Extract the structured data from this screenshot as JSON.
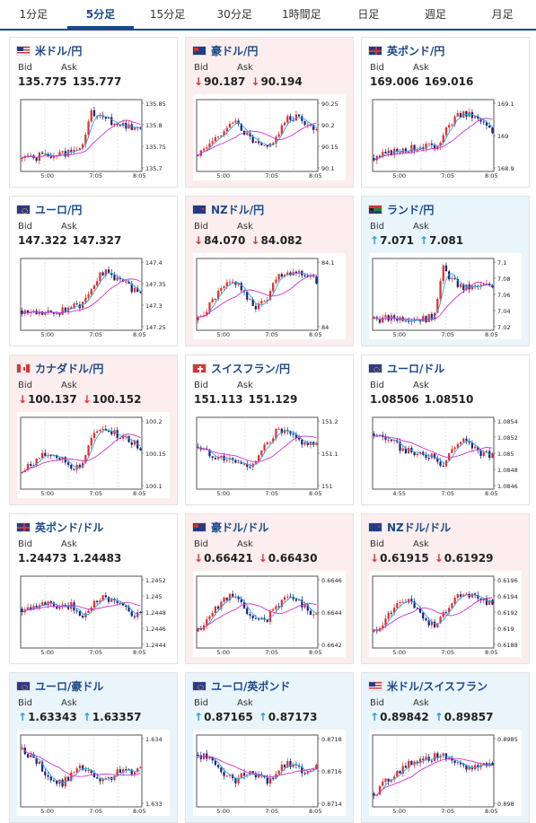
{
  "tabs": [
    {
      "label": "1分足",
      "active": false
    },
    {
      "label": "5分足",
      "active": true
    },
    {
      "label": "15分足",
      "active": false
    },
    {
      "label": "30分足",
      "active": false
    },
    {
      "label": "1時間足",
      "active": false
    },
    {
      "label": "日足",
      "active": false
    },
    {
      "label": "週足",
      "active": false
    },
    {
      "label": "月足",
      "active": false
    }
  ],
  "labels": {
    "bid": "Bid",
    "ask": "Ask"
  },
  "colors": {
    "bull": "#e03030",
    "bear": "#1a237e",
    "ma_fast": "#2aa8e0",
    "ma_slow": "#d030d0",
    "down_bg": "#fceeee",
    "up_bg": "#eaf4fb"
  },
  "cards": [
    {
      "pair": "米ドル/円",
      "flag": "us-jp",
      "dir": "none",
      "bid": "135.775",
      "ask": "135.777",
      "chart_data": {
        "type": "candlestick",
        "x_ticks": [
          "5:00",
          "7:05",
          "8:05"
        ],
        "y_ticks": [
          "135.85",
          "135.8",
          "135.75",
          "135.7"
        ],
        "ylim": [
          135.66,
          135.87
        ],
        "profile": [
          0.15,
          0.16,
          0.18,
          0.2,
          0.22,
          0.25,
          0.28,
          0.85,
          0.75,
          0.72,
          0.68,
          0.65,
          0.6
        ],
        "seed": 1
      }
    },
    {
      "pair": "豪ドル/円",
      "flag": "au-jp",
      "dir": "down",
      "bid": "90.187",
      "ask": "90.194",
      "chart_data": {
        "type": "candlestick",
        "x_ticks": [
          "5:00",
          "7:05",
          "8:05"
        ],
        "y_ticks": [
          "90.25",
          "90.2",
          "90.15",
          "90.1"
        ],
        "ylim": [
          90.09,
          90.27
        ],
        "profile": [
          0.2,
          0.35,
          0.5,
          0.65,
          0.7,
          0.5,
          0.35,
          0.3,
          0.5,
          0.75,
          0.8,
          0.7,
          0.6
        ],
        "seed": 2
      }
    },
    {
      "pair": "英ポンド/円",
      "flag": "gb-jp",
      "dir": "none",
      "bid": "169.006",
      "ask": "169.016",
      "chart_data": {
        "type": "candlestick",
        "x_ticks": [
          "5:00",
          "7:05",
          "8:05"
        ],
        "y_ticks": [
          "169.1",
          "169",
          "168.9"
        ],
        "ylim": [
          168.88,
          169.12
        ],
        "profile": [
          0.15,
          0.2,
          0.25,
          0.3,
          0.3,
          0.35,
          0.3,
          0.5,
          0.75,
          0.85,
          0.8,
          0.7,
          0.55
        ],
        "seed": 3
      }
    },
    {
      "pair": "ユーロ/円",
      "flag": "eu-jp",
      "dir": "none",
      "bid": "147.322",
      "ask": "147.327",
      "chart_data": {
        "type": "candlestick",
        "x_ticks": [
          "5:00",
          "7:05",
          "8:05"
        ],
        "y_ticks": [
          "147.4",
          "147.35",
          "147.3",
          "147.25"
        ],
        "ylim": [
          147.21,
          147.42
        ],
        "profile": [
          0.25,
          0.22,
          0.2,
          0.2,
          0.25,
          0.3,
          0.35,
          0.6,
          0.85,
          0.8,
          0.7,
          0.6,
          0.55
        ],
        "seed": 4
      }
    },
    {
      "pair": "NZドル/円",
      "flag": "nz-jp",
      "dir": "down",
      "bid": "84.070",
      "ask": "84.082",
      "chart_data": {
        "type": "candlestick",
        "x_ticks": [
          "5:00",
          "7:05",
          "8:05"
        ],
        "y_ticks": [
          "84.1",
          "84"
        ],
        "ylim": [
          83.96,
          84.15
        ],
        "profile": [
          0.1,
          0.3,
          0.5,
          0.65,
          0.7,
          0.4,
          0.3,
          0.45,
          0.8,
          0.85,
          0.85,
          0.8,
          0.7
        ],
        "seed": 5
      }
    },
    {
      "pair": "ランド/円",
      "flag": "za-jp",
      "dir": "up",
      "bid": "7.071",
      "ask": "7.081",
      "chart_data": {
        "type": "candlestick",
        "x_ticks": [
          "5:00",
          "7:05",
          "8:05"
        ],
        "y_ticks": [
          "7.1",
          "7.08",
          "7.06",
          "7.04",
          "7.02"
        ],
        "ylim": [
          7.01,
          7.11
        ],
        "profile": [
          0.12,
          0.12,
          0.13,
          0.14,
          0.13,
          0.12,
          0.15,
          0.9,
          0.7,
          0.6,
          0.6,
          0.62,
          0.65
        ],
        "seed": 6
      }
    },
    {
      "pair": "カナダドル/円",
      "flag": "ca-jp",
      "dir": "down",
      "bid": "100.137",
      "ask": "100.152",
      "chart_data": {
        "type": "candlestick",
        "x_ticks": [
          "5:00",
          "7:05",
          "8:05"
        ],
        "y_ticks": [
          "100.2",
          "100.15",
          "100.1"
        ],
        "ylim": [
          100.05,
          100.22
        ],
        "profile": [
          0.2,
          0.35,
          0.45,
          0.5,
          0.4,
          0.3,
          0.3,
          0.7,
          0.9,
          0.85,
          0.75,
          0.7,
          0.6
        ],
        "seed": 7
      }
    },
    {
      "pair": "スイスフラン/円",
      "flag": "ch-jp",
      "dir": "none",
      "bid": "151.113",
      "ask": "151.129",
      "chart_data": {
        "type": "candlestick",
        "x_ticks": [
          "5:00",
          "7:05",
          "8:05"
        ],
        "y_ticks": [
          "151.2",
          "151.1",
          "151"
        ],
        "ylim": [
          150.97,
          151.22
        ],
        "profile": [
          0.6,
          0.5,
          0.45,
          0.4,
          0.35,
          0.3,
          0.4,
          0.65,
          0.85,
          0.8,
          0.7,
          0.65,
          0.6
        ],
        "seed": 8
      }
    },
    {
      "pair": "ユーロ/ドル",
      "flag": "eu-us",
      "dir": "none",
      "bid": "1.08506",
      "ask": "1.08510",
      "chart_data": {
        "type": "candlestick",
        "x_ticks": [
          "4:55",
          "7:05",
          "8:05"
        ],
        "y_ticks": [
          "1.0854",
          "1.0852",
          "1.085",
          "1.0848",
          "1.0846"
        ],
        "ylim": [
          1.08455,
          1.08545
        ],
        "profile": [
          0.8,
          0.75,
          0.65,
          0.55,
          0.5,
          0.45,
          0.5,
          0.3,
          0.6,
          0.7,
          0.6,
          0.5,
          0.45
        ],
        "seed": 9
      }
    },
    {
      "pair": "英ポンド/ドル",
      "flag": "gb-us",
      "dir": "none",
      "bid": "1.24473",
      "ask": "1.24483",
      "chart_data": {
        "type": "candlestick",
        "x_ticks": [
          "5:00",
          "7:05",
          "8:05"
        ],
        "y_ticks": [
          "1.2452",
          "1.245",
          "1.2448",
          "1.2446",
          "1.2444"
        ],
        "ylim": [
          1.24435,
          1.24525
        ],
        "profile": [
          0.55,
          0.6,
          0.65,
          0.6,
          0.55,
          0.6,
          0.4,
          0.6,
          0.75,
          0.7,
          0.6,
          0.5,
          0.45
        ],
        "seed": 10
      }
    },
    {
      "pair": "豪ドル/ドル",
      "flag": "au-us",
      "dir": "down",
      "bid": "0.66421",
      "ask": "0.66430",
      "chart_data": {
        "type": "candlestick",
        "x_ticks": [
          "5:00",
          "7:05",
          "8:05"
        ],
        "y_ticks": [
          "0.6646",
          "0.6644",
          "0.6642"
        ],
        "ylim": [
          0.6641,
          0.66465
        ],
        "profile": [
          0.2,
          0.4,
          0.6,
          0.75,
          0.7,
          0.5,
          0.35,
          0.4,
          0.6,
          0.75,
          0.7,
          0.55,
          0.45
        ],
        "seed": 11
      }
    },
    {
      "pair": "NZドル/ドル",
      "flag": "nz-us",
      "dir": "down",
      "bid": "0.61915",
      "ask": "0.61929",
      "chart_data": {
        "type": "candlestick",
        "x_ticks": [
          "5:00",
          "7:05",
          "8:05"
        ],
        "y_ticks": [
          "0.6196",
          "0.6194",
          "0.6192",
          "0.619",
          "0.6188"
        ],
        "ylim": [
          0.61875,
          0.61965
        ],
        "profile": [
          0.2,
          0.35,
          0.55,
          0.7,
          0.6,
          0.4,
          0.3,
          0.45,
          0.7,
          0.8,
          0.75,
          0.7,
          0.6
        ],
        "seed": 12
      }
    },
    {
      "pair": "ユーロ/豪ドル",
      "flag": "eu-au",
      "dir": "up",
      "bid": "1.63343",
      "ask": "1.63357",
      "chart_data": {
        "type": "candlestick",
        "x_ticks": [
          "5:00",
          "7:05",
          "8:05"
        ],
        "y_ticks": [
          "1.634",
          "1.633"
        ],
        "ylim": [
          1.6325,
          1.6342
        ],
        "profile": [
          0.85,
          0.7,
          0.55,
          0.35,
          0.3,
          0.45,
          0.55,
          0.45,
          0.3,
          0.4,
          0.5,
          0.5,
          0.55
        ],
        "seed": 13
      }
    },
    {
      "pair": "ユーロ/英ポンド",
      "flag": "eu-gb",
      "dir": "up",
      "bid": "0.87165",
      "ask": "0.87173",
      "chart_data": {
        "type": "candlestick",
        "x_ticks": [
          "5:00",
          "7:05",
          "8:05"
        ],
        "y_ticks": [
          "0.8718",
          "0.8716",
          "0.8714"
        ],
        "ylim": [
          0.87128,
          0.87185
        ],
        "profile": [
          0.75,
          0.7,
          0.55,
          0.4,
          0.35,
          0.5,
          0.45,
          0.3,
          0.5,
          0.6,
          0.55,
          0.5,
          0.6
        ],
        "seed": 14
      }
    },
    {
      "pair": "米ドル/スイスフラン",
      "flag": "us-ch",
      "dir": "up",
      "bid": "0.89842",
      "ask": "0.89857",
      "chart_data": {
        "type": "candlestick",
        "x_ticks": [
          "5:00",
          "7:05",
          "8:05"
        ],
        "y_ticks": [
          "0.8985",
          "0.898"
        ],
        "ylim": [
          0.8978,
          0.8988
        ],
        "profile": [
          0.15,
          0.3,
          0.45,
          0.55,
          0.65,
          0.7,
          0.7,
          0.8,
          0.6,
          0.55,
          0.55,
          0.6,
          0.6
        ],
        "seed": 15
      }
    }
  ]
}
